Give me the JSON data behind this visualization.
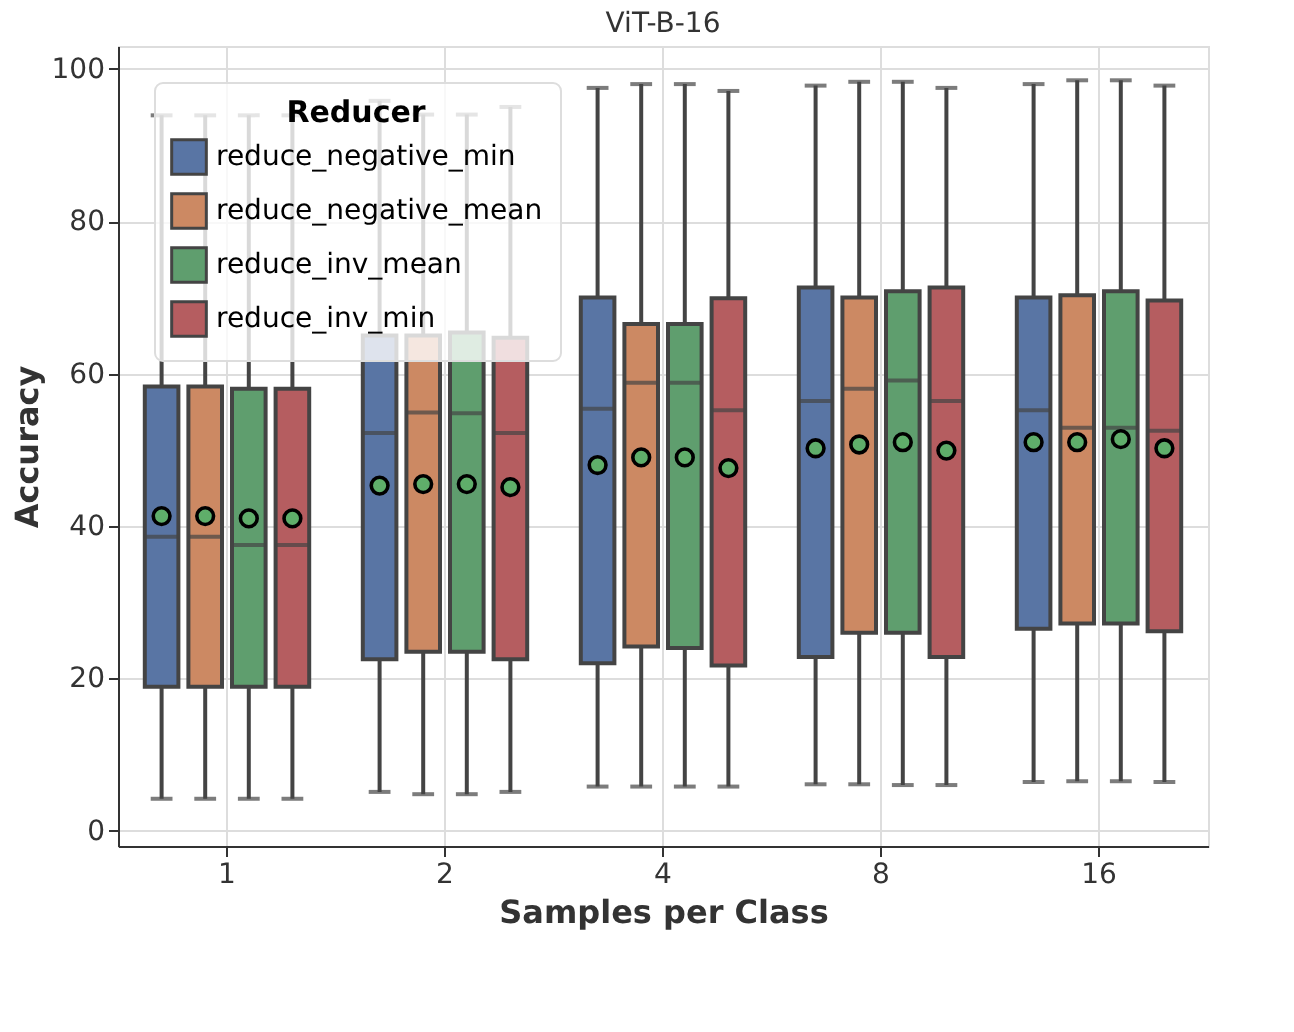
{
  "chart_data": {
    "type": "box",
    "title": "ViT-B-16",
    "xlabel": "Samples per Class",
    "ylabel": "Accuracy",
    "legend_title": "Reducer",
    "categories": [
      "1",
      "2",
      "4",
      "8",
      "16"
    ],
    "ylim": [
      -2,
      103
    ],
    "yticks": [
      0,
      20,
      40,
      60,
      80,
      100
    ],
    "grid": true,
    "legend": "top left",
    "series": [
      {
        "name": "reduce_negative_min",
        "color": "#5975a4",
        "boxes": [
          {
            "low": 4.2,
            "q1": 18.9,
            "median": 38.6,
            "q3": 58.3,
            "high": 93.9,
            "mean": 41.3
          },
          {
            "low": 5.1,
            "q1": 22.5,
            "median": 52.2,
            "q3": 65.0,
            "high": 95.8,
            "mean": 45.3
          },
          {
            "low": 5.8,
            "q1": 22.0,
            "median": 55.4,
            "q3": 70.0,
            "high": 97.5,
            "mean": 48.0
          },
          {
            "low": 6.1,
            "q1": 22.8,
            "median": 56.4,
            "q3": 71.3,
            "high": 97.8,
            "mean": 50.2
          },
          {
            "low": 6.4,
            "q1": 26.5,
            "median": 55.2,
            "q3": 70.0,
            "high": 98.0,
            "mean": 51.0
          }
        ]
      },
      {
        "name": "reduce_negative_mean",
        "color": "#cc8963",
        "boxes": [
          {
            "low": 4.2,
            "q1": 18.9,
            "median": 38.6,
            "q3": 58.3,
            "high": 93.9,
            "mean": 41.3
          },
          {
            "low": 4.8,
            "q1": 23.5,
            "median": 54.9,
            "q3": 65.0,
            "high": 94.0,
            "mean": 45.5
          },
          {
            "low": 5.8,
            "q1": 24.2,
            "median": 58.8,
            "q3": 66.5,
            "high": 98.0,
            "mean": 49.0
          },
          {
            "low": 6.1,
            "q1": 26.0,
            "median": 58.0,
            "q3": 70.0,
            "high": 98.3,
            "mean": 50.7
          },
          {
            "low": 6.5,
            "q1": 27.2,
            "median": 52.9,
            "q3": 70.3,
            "high": 98.5,
            "mean": 51.0
          }
        ]
      },
      {
        "name": "reduce_inv_mean",
        "color": "#5f9e6e",
        "boxes": [
          {
            "low": 4.2,
            "q1": 18.9,
            "median": 37.5,
            "q3": 58.0,
            "high": 93.9,
            "mean": 41.0
          },
          {
            "low": 4.8,
            "q1": 23.5,
            "median": 54.8,
            "q3": 65.4,
            "high": 94.0,
            "mean": 45.5
          },
          {
            "low": 5.8,
            "q1": 24.0,
            "median": 58.8,
            "q3": 66.5,
            "high": 98.0,
            "mean": 49.0
          },
          {
            "low": 6.0,
            "q1": 26.0,
            "median": 59.1,
            "q3": 70.8,
            "high": 98.3,
            "mean": 51.0
          },
          {
            "low": 6.5,
            "q1": 27.2,
            "median": 52.9,
            "q3": 70.8,
            "high": 98.5,
            "mean": 51.4
          }
        ]
      },
      {
        "name": "reduce_inv_min",
        "color": "#b55d60",
        "boxes": [
          {
            "low": 4.2,
            "q1": 18.9,
            "median": 37.5,
            "q3": 58.0,
            "high": 93.9,
            "mean": 41.0
          },
          {
            "low": 5.1,
            "q1": 22.5,
            "median": 52.2,
            "q3": 64.7,
            "high": 95.0,
            "mean": 45.1
          },
          {
            "low": 5.8,
            "q1": 21.7,
            "median": 55.2,
            "q3": 69.9,
            "high": 97.1,
            "mean": 47.6
          },
          {
            "low": 6.0,
            "q1": 22.8,
            "median": 56.4,
            "q3": 71.3,
            "high": 97.5,
            "mean": 49.9
          },
          {
            "low": 6.4,
            "q1": 26.2,
            "median": 52.5,
            "q3": 69.6,
            "high": 97.8,
            "mean": 50.2
          }
        ]
      }
    ]
  }
}
